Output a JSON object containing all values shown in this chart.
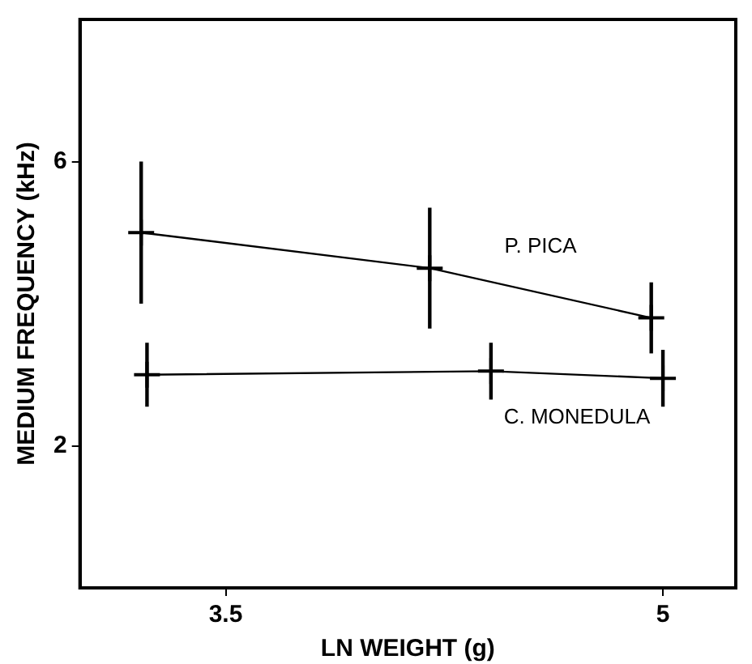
{
  "chart_data": {
    "type": "line",
    "xlabel": "LN WEIGHT (g)",
    "ylabel": "MEDIUM FREQUENCY (kHz)",
    "xlim": [
      3,
      5.25
    ],
    "xticks": [
      3.5,
      5
    ],
    "ylim": [
      0,
      8
    ],
    "yticks": [
      2,
      6
    ],
    "grid": false,
    "legend": false,
    "marker": "cross",
    "line_style": "solid",
    "series": [
      {
        "name": "P. PICA",
        "color": "#000000",
        "x": [
          3.21,
          4.2,
          4.96
        ],
        "values": [
          5.0,
          4.5,
          3.8
        ],
        "errors": [
          1.0,
          0.85,
          0.5
        ]
      },
      {
        "name": "C. MONEDULA",
        "color": "#000000",
        "x": [
          3.23,
          4.41,
          5.0
        ],
        "values": [
          3.0,
          3.05,
          2.95
        ],
        "errors": [
          0.45,
          0.4,
          0.4
        ]
      }
    ]
  }
}
